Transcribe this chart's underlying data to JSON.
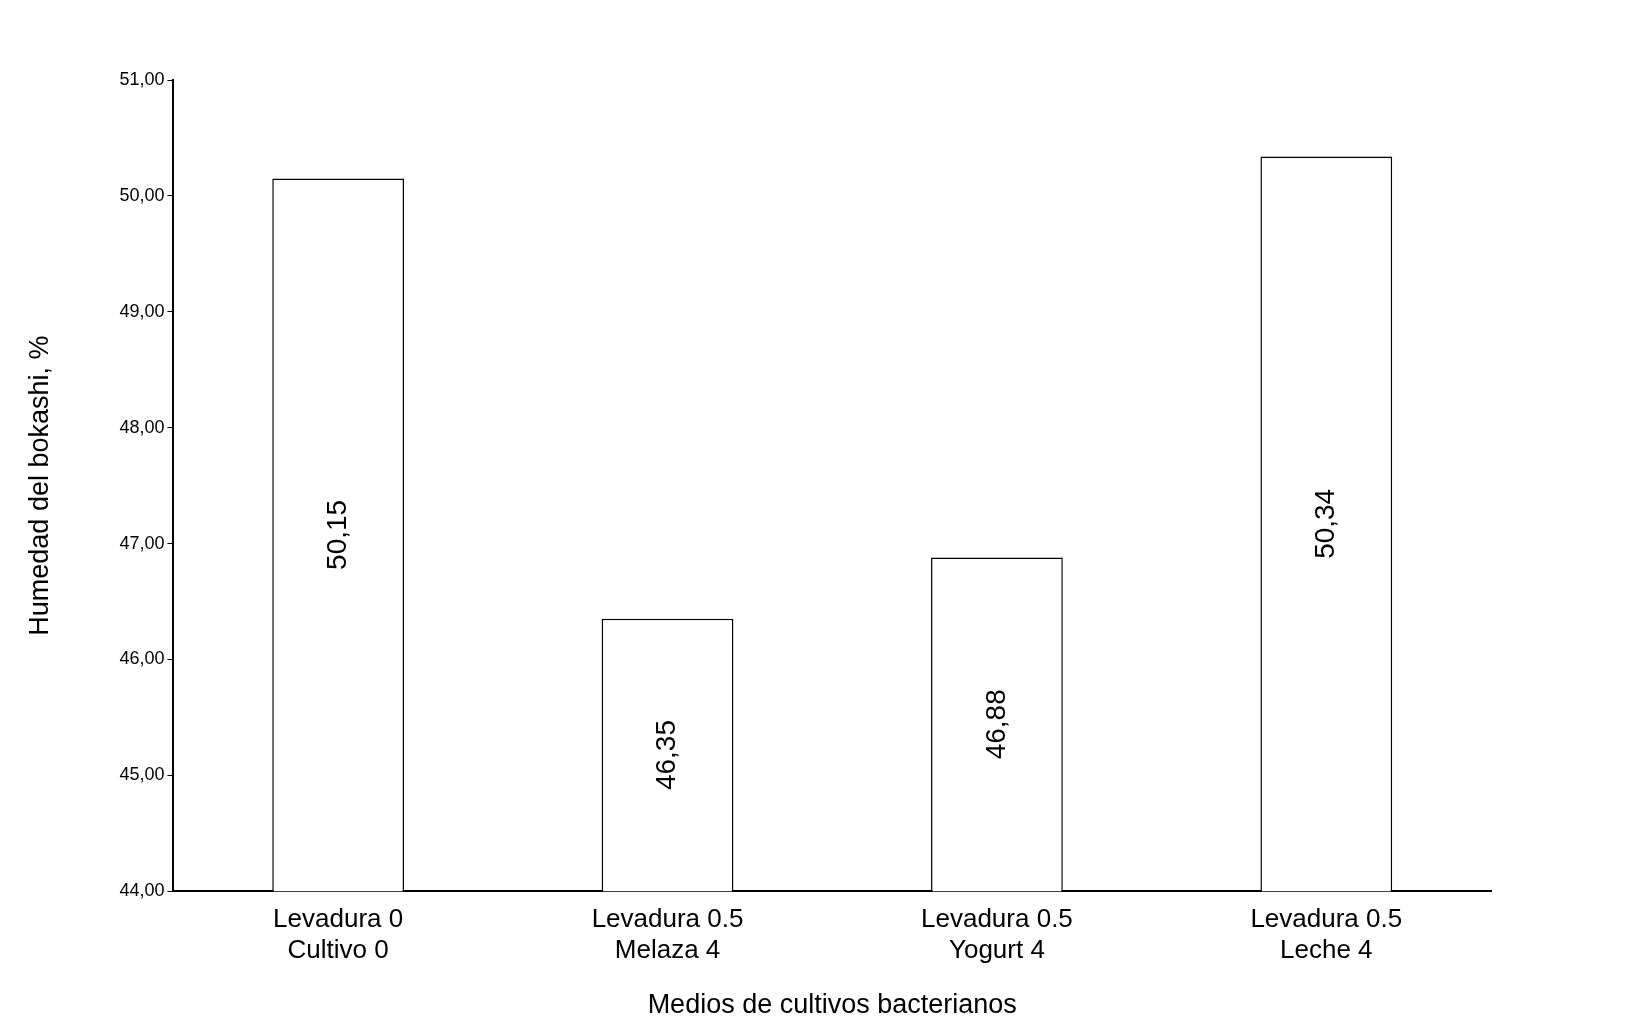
{
  "chart_data": {
    "type": "bar",
    "xlabel": "Medios de cultivos bacterianos",
    "ylabel": "Humedad del bokashi, %",
    "categories": [
      "Levadura 0\nCultivo 0",
      "Levadura 0.5\nMelaza 4",
      "Levadura 0.5\nYogurt 4",
      "Levadura 0.5\nLeche 4"
    ],
    "values": [
      50.15,
      46.35,
      46.88,
      50.34
    ],
    "value_labels": [
      "50,15",
      "46,35",
      "46,88",
      "50,34"
    ],
    "color": "#ffffff",
    "ylim": [
      44,
      51
    ],
    "yticks": [
      {
        "value": 44,
        "label": "44,00"
      },
      {
        "value": 45,
        "label": "45,00"
      },
      {
        "value": 46,
        "label": "46,00"
      },
      {
        "value": 47,
        "label": "47,00"
      },
      {
        "value": 48,
        "label": "48,00"
      },
      {
        "value": 49,
        "label": "49,00"
      },
      {
        "value": 50,
        "label": "50,00"
      },
      {
        "value": 51,
        "label": "51,00"
      }
    ],
    "grid": false,
    "legend": false
  }
}
